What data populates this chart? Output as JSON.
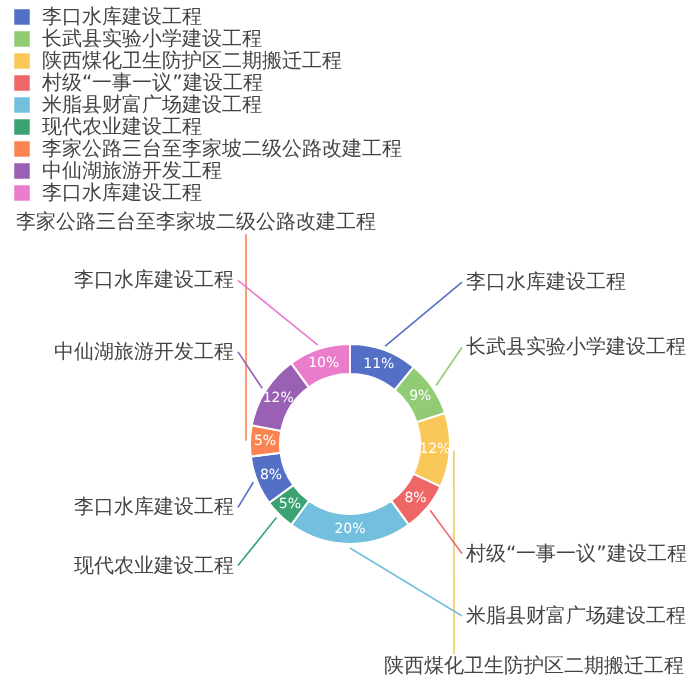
{
  "chart_data": {
    "type": "donut",
    "categories": [
      "李口水库建设工程",
      "长武县实验小学建设工程",
      "陕西煤化卫生防护区二期搬迁工程",
      "村级“一事一议”建设工程",
      "米脂县财富广场建设工程",
      "现代农业建设工程",
      "李口水库建设工程",
      "李家公路三台至李家坡二级公路改建工程",
      "中仙湖旅游开发工程",
      "李口水库建设工程"
    ],
    "values": [
      11,
      9,
      12,
      8,
      20,
      5,
      8,
      5,
      12,
      10
    ],
    "colors": [
      "#5470c6",
      "#91cc75",
      "#fac858",
      "#ee6666",
      "#73c0de",
      "#3ba272",
      "#5470c6",
      "#fc8452",
      "#9a60b4",
      "#ea7ccc"
    ],
    "value_labels": [
      "11%",
      "9%",
      "12%",
      "8%",
      "20%",
      "5%",
      "8%",
      "5%",
      "12%",
      "10%"
    ],
    "legend": "top left"
  }
}
